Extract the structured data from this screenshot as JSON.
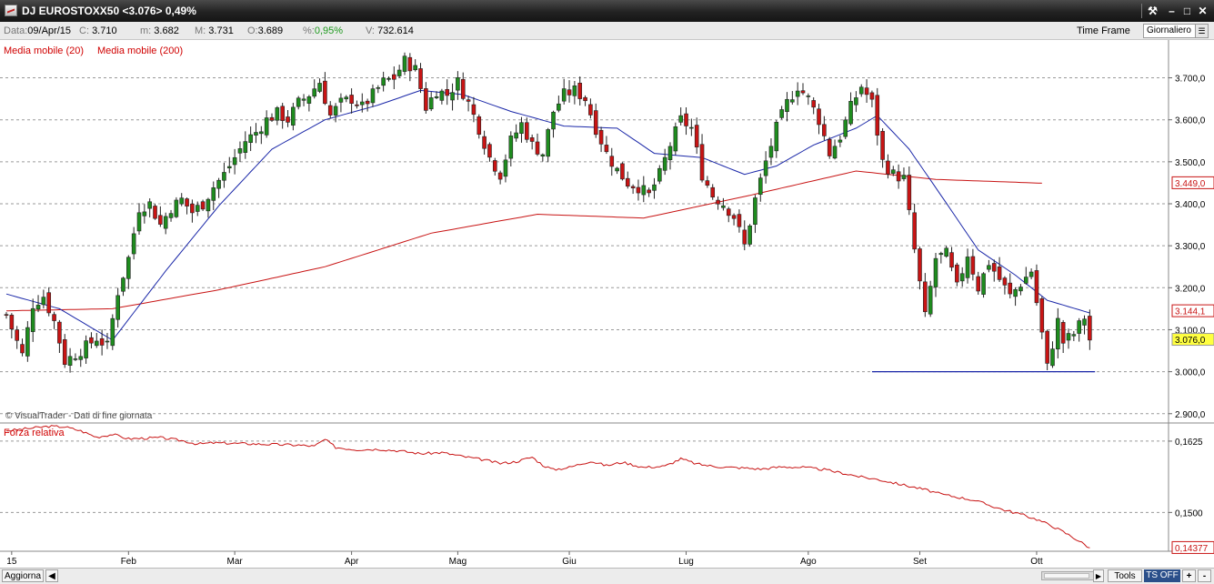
{
  "window": {
    "title": "DJ EUROSTOXX50 <3.076> 0,49%",
    "controls": {
      "tools": "⚒",
      "minimize": "–",
      "maximize": "□",
      "close": "✕"
    }
  },
  "info": {
    "date_label": "Data:",
    "date": "09/Apr/15",
    "close_label": "C:",
    "close": "3.710",
    "min_label": "m:",
    "min": "3.682",
    "max_label": "M:",
    "max": "3.731",
    "open_label": "O:",
    "open": "3.689",
    "pct_label": "%:",
    "pct": "0,95%",
    "vol_label": "V:",
    "vol": "732.614",
    "timeframe_label": "Time Frame",
    "timeframe_value": "Giornaliero"
  },
  "legend": {
    "ma20": "Media mobile (20)",
    "ma200": "Media mobile (200)"
  },
  "credit": "© VisualTrader - Dati di fine giornata",
  "lower_panel_title": "Forza relativa",
  "bottom": {
    "refresh": "Aggiorna",
    "tools": "Tools",
    "tsoff": "TS OFF",
    "zoom_in": "+",
    "zoom_out": "-"
  },
  "colors": {
    "bull": "#1e8c1e",
    "bear": "#c81414",
    "ma20": "#1a27a8",
    "ma200": "#c81414",
    "support": "#1a27a8",
    "current_price_bg": "#ffff40",
    "rs_line": "#c81414"
  },
  "chart_data": [
    {
      "type": "candlestick",
      "title": "DJ EUROSTOXX50",
      "y_axis_side": "right",
      "ylim": [
        2880,
        3790
      ],
      "y_ticks": [
        2900,
        3000,
        3100,
        3200,
        3300,
        3400,
        3500,
        3600,
        3700
      ],
      "y_tick_labels": [
        "2.900,0",
        "3.000,0",
        "3.100,0",
        "3.200,0",
        "3.300,0",
        "3.400,0",
        "3.500,0",
        "3.600,0",
        "3.700,0"
      ],
      "x_labels": [
        "15",
        "Feb",
        "Mar",
        "Apr",
        "Mag",
        "Giu",
        "Lug",
        "Ago",
        "Set",
        "Ott"
      ],
      "x_label_days": [
        1,
        23,
        43,
        65,
        85,
        106,
        128,
        151,
        172,
        194
      ],
      "num_days": 196,
      "grid": true,
      "series": [
        {
          "name": "Media mobile (20)",
          "kind": "ma",
          "period": 20
        },
        {
          "name": "Media mobile (200)",
          "kind": "ma",
          "period": 200
        }
      ],
      "ma200_points": [
        [
          0,
          3145
        ],
        [
          20,
          3150
        ],
        [
          40,
          3195
        ],
        [
          60,
          3250
        ],
        [
          80,
          3330
        ],
        [
          100,
          3375
        ],
        [
          120,
          3366
        ],
        [
          140,
          3420
        ],
        [
          160,
          3478
        ],
        [
          175,
          3458
        ],
        [
          195,
          3449
        ]
      ],
      "value_tags": [
        {
          "label": "3.449,0",
          "value": 3449,
          "style": "ma"
        },
        {
          "label": "3.144,1",
          "value": 3144.1,
          "style": "ma"
        },
        {
          "label": "3.076,0",
          "value": 3076,
          "style": "price"
        }
      ],
      "support_line": {
        "value": 3000,
        "from_day": 163,
        "to_day": 205
      },
      "close_points": [
        [
          0,
          3135
        ],
        [
          3,
          3040
        ],
        [
          5,
          3160
        ],
        [
          7,
          3180
        ],
        [
          9,
          3120
        ],
        [
          11,
          3025
        ],
        [
          14,
          3050
        ],
        [
          17,
          3080
        ],
        [
          19,
          3060
        ],
        [
          21,
          3190
        ],
        [
          23,
          3270
        ],
        [
          25,
          3390
        ],
        [
          27,
          3400
        ],
        [
          29,
          3350
        ],
        [
          31,
          3390
        ],
        [
          33,
          3410
        ],
        [
          35,
          3380
        ],
        [
          37,
          3400
        ],
        [
          39,
          3440
        ],
        [
          41,
          3470
        ],
        [
          43,
          3510
        ],
        [
          45,
          3550
        ],
        [
          47,
          3570
        ],
        [
          49,
          3600
        ],
        [
          51,
          3615
        ],
        [
          53,
          3600
        ],
        [
          55,
          3640
        ],
        [
          57,
          3660
        ],
        [
          59,
          3690
        ],
        [
          61,
          3610
        ],
        [
          63,
          3640
        ],
        [
          65,
          3650
        ],
        [
          67,
          3630
        ],
        [
          69,
          3660
        ],
        [
          71,
          3690
        ],
        [
          73,
          3700
        ],
        [
          75,
          3740
        ],
        [
          77,
          3720
        ],
        [
          79,
          3630
        ],
        [
          81,
          3670
        ],
        [
          83,
          3660
        ],
        [
          85,
          3690
        ],
        [
          87,
          3640
        ],
        [
          89,
          3580
        ],
        [
          91,
          3510
        ],
        [
          93,
          3470
        ],
        [
          95,
          3550
        ],
        [
          97,
          3590
        ],
        [
          99,
          3540
        ],
        [
          101,
          3520
        ],
        [
          103,
          3620
        ],
        [
          105,
          3660
        ],
        [
          107,
          3670
        ],
        [
          109,
          3650
        ],
        [
          111,
          3580
        ],
        [
          113,
          3520
        ],
        [
          115,
          3480
        ],
        [
          117,
          3450
        ],
        [
          119,
          3440
        ],
        [
          121,
          3420
        ],
        [
          123,
          3470
        ],
        [
          125,
          3540
        ],
        [
          127,
          3600
        ],
        [
          129,
          3580
        ],
        [
          131,
          3470
        ],
        [
          133,
          3420
        ],
        [
          135,
          3400
        ],
        [
          137,
          3370
        ],
        [
          139,
          3300
        ],
        [
          141,
          3410
        ],
        [
          143,
          3500
        ],
        [
          145,
          3580
        ],
        [
          147,
          3640
        ],
        [
          149,
          3680
        ],
        [
          151,
          3650
        ],
        [
          153,
          3600
        ],
        [
          155,
          3520
        ],
        [
          157,
          3560
        ],
        [
          159,
          3630
        ],
        [
          161,
          3680
        ],
        [
          163,
          3640
        ],
        [
          165,
          3500
        ],
        [
          167,
          3470
        ],
        [
          169,
          3460
        ],
        [
          171,
          3290
        ],
        [
          173,
          3130
        ],
        [
          175,
          3270
        ],
        [
          177,
          3280
        ],
        [
          179,
          3200
        ],
        [
          181,
          3280
        ],
        [
          183,
          3200
        ],
        [
          185,
          3260
        ],
        [
          187,
          3220
        ],
        [
          189,
          3180
        ],
        [
          191,
          3210
        ],
        [
          193,
          3240
        ],
        [
          195,
          3090
        ],
        [
          196,
          3010
        ],
        [
          198,
          3120
        ],
        [
          199,
          3070
        ],
        [
          201,
          3090
        ],
        [
          203,
          3130
        ],
        [
          204,
          3076
        ]
      ],
      "ma20_points": [
        [
          0,
          3185
        ],
        [
          10,
          3150
        ],
        [
          20,
          3075
        ],
        [
          30,
          3240
        ],
        [
          40,
          3395
        ],
        [
          50,
          3530
        ],
        [
          60,
          3600
        ],
        [
          70,
          3635
        ],
        [
          78,
          3670
        ],
        [
          86,
          3660
        ],
        [
          95,
          3620
        ],
        [
          105,
          3585
        ],
        [
          115,
          3580
        ],
        [
          122,
          3520
        ],
        [
          131,
          3510
        ],
        [
          139,
          3470
        ],
        [
          145,
          3490
        ],
        [
          152,
          3540
        ],
        [
          160,
          3580
        ],
        [
          164,
          3610
        ],
        [
          170,
          3530
        ],
        [
          176,
          3420
        ],
        [
          183,
          3290
        ],
        [
          190,
          3230
        ],
        [
          196,
          3170
        ],
        [
          204,
          3140
        ]
      ]
    },
    {
      "type": "line",
      "title": "Forza relativa",
      "ylim": [
        0.1432,
        0.1652
      ],
      "y_ticks": [
        0.1625,
        0.15
      ],
      "y_tick_labels": [
        "0,1625",
        "0,1500"
      ],
      "value_tags": [
        {
          "label": "0,14377",
          "value": 0.14377
        }
      ],
      "points": [
        [
          0,
          0.1643
        ],
        [
          4,
          0.1647
        ],
        [
          8,
          0.1651
        ],
        [
          11,
          0.165
        ],
        [
          14,
          0.1643
        ],
        [
          17,
          0.1632
        ],
        [
          20,
          0.1637
        ],
        [
          23,
          0.1629
        ],
        [
          26,
          0.163
        ],
        [
          29,
          0.1631
        ],
        [
          33,
          0.1626
        ],
        [
          36,
          0.162
        ],
        [
          39,
          0.1622
        ],
        [
          43,
          0.1621
        ],
        [
          47,
          0.162
        ],
        [
          51,
          0.1619
        ],
        [
          55,
          0.1618
        ],
        [
          58,
          0.1616
        ],
        [
          60,
          0.1628
        ],
        [
          62,
          0.1614
        ],
        [
          66,
          0.161
        ],
        [
          70,
          0.1611
        ],
        [
          74,
          0.1608
        ],
        [
          78,
          0.1603
        ],
        [
          82,
          0.1605
        ],
        [
          86,
          0.1598
        ],
        [
          90,
          0.1592
        ],
        [
          93,
          0.1586
        ],
        [
          96,
          0.1589
        ],
        [
          99,
          0.1597
        ],
        [
          101,
          0.1583
        ],
        [
          103,
          0.1575
        ],
        [
          106,
          0.1579
        ],
        [
          110,
          0.159
        ],
        [
          113,
          0.1582
        ],
        [
          116,
          0.1588
        ],
        [
          120,
          0.1579
        ],
        [
          124,
          0.1581
        ],
        [
          127,
          0.1594
        ],
        [
          130,
          0.1585
        ],
        [
          133,
          0.1581
        ],
        [
          136,
          0.1579
        ],
        [
          139,
          0.1578
        ],
        [
          142,
          0.1576
        ],
        [
          146,
          0.158
        ],
        [
          150,
          0.1579
        ],
        [
          154,
          0.1575
        ],
        [
          158,
          0.1568
        ],
        [
          161,
          0.1562
        ],
        [
          164,
          0.1558
        ],
        [
          167,
          0.1552
        ],
        [
          170,
          0.1546
        ],
        [
          173,
          0.154
        ],
        [
          176,
          0.1532
        ],
        [
          179,
          0.1527
        ],
        [
          182,
          0.1522
        ],
        [
          185,
          0.1513
        ],
        [
          188,
          0.1504
        ],
        [
          191,
          0.1497
        ],
        [
          194,
          0.1488
        ],
        [
          197,
          0.1476
        ],
        [
          200,
          0.1461
        ],
        [
          202,
          0.145
        ],
        [
          204,
          0.1438
        ]
      ]
    }
  ]
}
